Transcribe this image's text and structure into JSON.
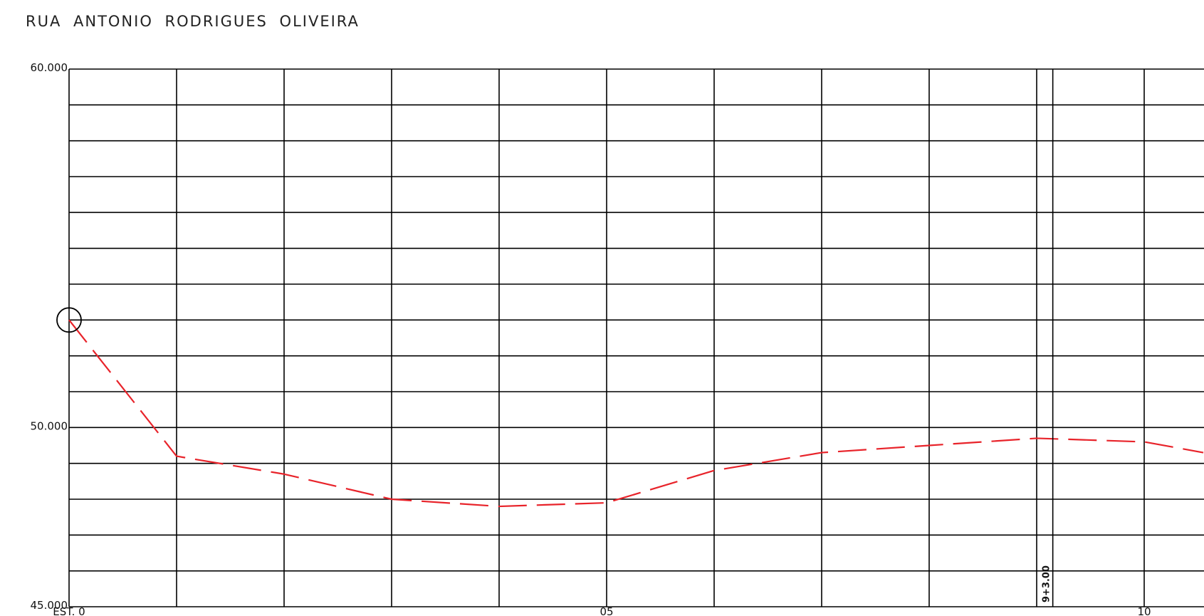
{
  "chart_data": {
    "type": "line",
    "title": "RUA ANTONIO RODRIGUES OLIVEIRA",
    "xlabel": "",
    "ylabel": "",
    "x_tick_labels": [
      {
        "x": 0,
        "label": "EST. 0"
      },
      {
        "x": 5,
        "label": "05"
      },
      {
        "x": 10,
        "label": "10"
      }
    ],
    "y_tick_labels": [
      {
        "y": 60,
        "label": "60.000"
      },
      {
        "y": 50,
        "label": "50.000"
      },
      {
        "y": 45,
        "label": "45.000"
      }
    ],
    "xlim": [
      0,
      10.55
    ],
    "ylim": [
      45,
      60
    ],
    "grid": true,
    "x_grid_step": 1,
    "y_grid_step": 1,
    "series": [
      {
        "color": "#e8232a",
        "line_style": "dashed",
        "x": [
          0,
          1,
          2,
          3,
          4,
          5,
          6,
          7,
          8,
          9,
          10,
          10.55
        ],
        "y": [
          53.0,
          49.2,
          48.7,
          48.0,
          47.8,
          47.9,
          48.8,
          49.3,
          49.5,
          49.7,
          49.6,
          49.3
        ]
      }
    ],
    "station_marker": {
      "x": 9.15,
      "label": "9+3.00"
    },
    "start_marker": {
      "x": 0,
      "y": 53.0,
      "shape": "circle"
    }
  }
}
